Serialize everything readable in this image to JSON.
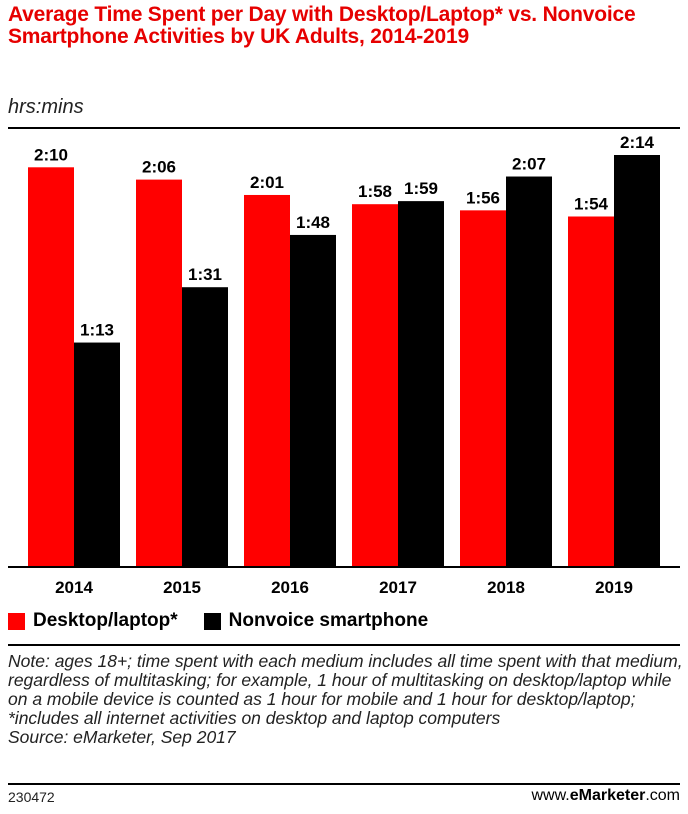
{
  "title": "Average Time Spent per Day with Desktop/Laptop* vs. Nonvoice Smartphone Activities by UK Adults, 2014-2019",
  "subtitle": "hrs:mins",
  "note": "Note: ages 18+; time spent with each medium includes all time spent with that medium, regardless of multitasking; for example, 1 hour of multitasking on desktop/laptop while on a mobile device is counted as 1 hour for mobile and 1 hour for desktop/laptop; *includes all internet activities on desktop and laptop computers",
  "source": "Source: eMarketer, Sep 2017",
  "footer": {
    "id": "230472",
    "brand_prefix": "www.",
    "brand_name": "eMarketer",
    "brand_suffix": ".com"
  },
  "colors": {
    "desktop": "#ff0000",
    "smartphone": "#000000",
    "title": "#e60000"
  },
  "chart_data": {
    "type": "bar",
    "title": "Average Time Spent per Day with Desktop/Laptop* vs. Nonvoice Smartphone Activities by UK Adults, 2014-2019",
    "ylabel": "hrs:mins",
    "categories": [
      "2014",
      "2015",
      "2016",
      "2017",
      "2018",
      "2019"
    ],
    "ylim": [
      0,
      134
    ],
    "grid": false,
    "legend_position": "bottom",
    "series": [
      {
        "name": "Desktop/laptop*",
        "color": "#ff0000",
        "values": [
          130,
          126,
          121,
          118,
          116,
          114
        ],
        "labels": [
          "2:10",
          "2:06",
          "2:01",
          "1:58",
          "1:56",
          "1:54"
        ]
      },
      {
        "name": "Nonvoice smartphone",
        "color": "#000000",
        "values": [
          73,
          91,
          108,
          119,
          127,
          134
        ],
        "labels": [
          "1:13",
          "1:31",
          "1:48",
          "1:59",
          "2:07",
          "2:14"
        ]
      }
    ]
  }
}
